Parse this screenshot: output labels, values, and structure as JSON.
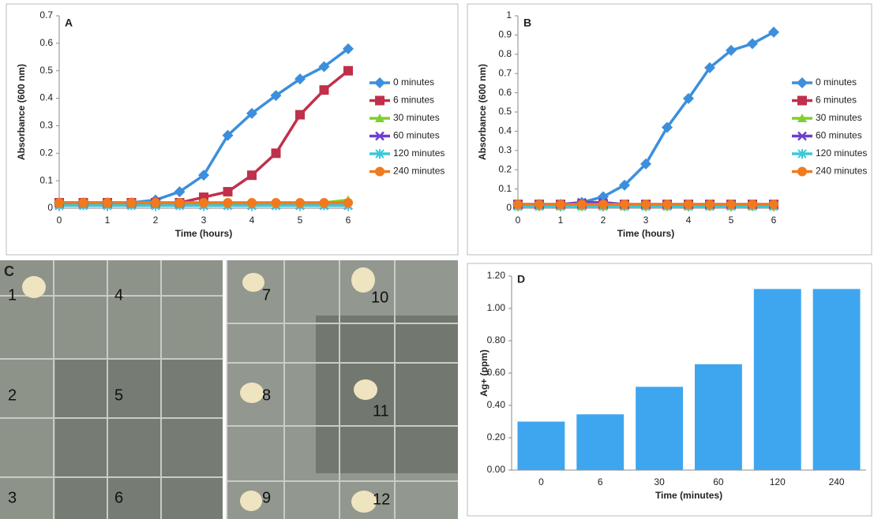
{
  "chart_data": [
    {
      "type": "line",
      "panel_label": "A",
      "y_label": "Absorbance (600 nm)",
      "x_label": "Time (hours)",
      "x": [
        0,
        0.5,
        1,
        1.5,
        2,
        2.5,
        3,
        3.5,
        4,
        4.5,
        5,
        5.5,
        6
      ],
      "xlim": [
        0,
        6
      ],
      "xticks": [
        0,
        1,
        2,
        3,
        4,
        5,
        6
      ],
      "ylim": [
        0,
        0.7
      ],
      "yticks": [
        0,
        0.1,
        0.2,
        0.3,
        0.4,
        0.5,
        0.6,
        0.7
      ],
      "series": [
        {
          "name": "0 minutes",
          "color": "#3c8fdc",
          "marker": "diamond",
          "values": [
            0.02,
            0.02,
            0.02,
            0.02,
            0.03,
            0.06,
            0.12,
            0.265,
            0.345,
            0.41,
            0.47,
            0.515,
            0.58
          ]
        },
        {
          "name": "6 minutes",
          "color": "#c0304a",
          "marker": "square",
          "values": [
            0.02,
            0.02,
            0.02,
            0.02,
            0.02,
            0.02,
            0.04,
            0.06,
            0.12,
            0.2,
            0.34,
            0.43,
            0.5
          ]
        },
        {
          "name": "30 minutes",
          "color": "#7fd02f",
          "marker": "triangle",
          "values": [
            0.02,
            0.02,
            0.02,
            0.02,
            0.02,
            0.02,
            0.02,
            0.02,
            0.02,
            0.02,
            0.02,
            0.02,
            0.03
          ]
        },
        {
          "name": "60 minutes",
          "color": "#6a3fcf",
          "marker": "cross",
          "values": [
            0.01,
            0.01,
            0.01,
            0.01,
            0.01,
            0.01,
            0.01,
            0.01,
            0.01,
            0.01,
            0.01,
            0.01,
            0.01
          ]
        },
        {
          "name": "120 minutes",
          "color": "#3cc8d8",
          "marker": "star",
          "values": [
            0.01,
            0.01,
            0.01,
            0.01,
            0.01,
            0.01,
            0.01,
            0.01,
            0.01,
            0.01,
            0.01,
            0.01,
            0.01
          ]
        },
        {
          "name": "240 minutes",
          "color": "#f07a1d",
          "marker": "circle",
          "values": [
            0.02,
            0.02,
            0.02,
            0.02,
            0.02,
            0.02,
            0.02,
            0.02,
            0.02,
            0.02,
            0.02,
            0.02,
            0.02
          ]
        }
      ]
    },
    {
      "type": "line",
      "panel_label": "B",
      "y_label": "Absorbance (600 nm)",
      "x_label": "Time (hours)",
      "x": [
        0,
        0.5,
        1,
        1.5,
        2,
        2.5,
        3,
        3.5,
        4,
        4.5,
        5,
        5.5,
        6
      ],
      "xlim": [
        0,
        6
      ],
      "xticks": [
        0,
        1,
        2,
        3,
        4,
        5,
        6
      ],
      "ylim": [
        0,
        1
      ],
      "yticks": [
        0,
        0.1,
        0.2,
        0.3,
        0.4,
        0.5,
        0.6,
        0.7,
        0.8,
        0.9,
        1
      ],
      "series": [
        {
          "name": "0 minutes",
          "color": "#3c8fdc",
          "marker": "diamond",
          "values": [
            0.02,
            0.02,
            0.02,
            0.03,
            0.06,
            0.12,
            0.23,
            0.42,
            0.57,
            0.73,
            0.82,
            0.855,
            0.915
          ]
        },
        {
          "name": "6 minutes",
          "color": "#c0304a",
          "marker": "square",
          "values": [
            0.02,
            0.02,
            0.02,
            0.02,
            0.02,
            0.02,
            0.02,
            0.02,
            0.02,
            0.02,
            0.02,
            0.02,
            0.02
          ]
        },
        {
          "name": "30 minutes",
          "color": "#7fd02f",
          "marker": "triangle",
          "values": [
            0.01,
            0.01,
            0.01,
            0.01,
            0.01,
            0.01,
            0.01,
            0.01,
            0.01,
            0.01,
            0.01,
            0.01,
            0.01
          ]
        },
        {
          "name": "60 minutes",
          "color": "#6a3fcf",
          "marker": "cross",
          "values": [
            0.02,
            0.02,
            0.02,
            0.03,
            0.03,
            0.02,
            0.02,
            0.02,
            0.02,
            0.02,
            0.02,
            0.02,
            0.02
          ]
        },
        {
          "name": "120 minutes",
          "color": "#3cc8d8",
          "marker": "star",
          "values": [
            0.01,
            0.01,
            0.01,
            0.01,
            0.01,
            0.01,
            0.01,
            0.01,
            0.01,
            0.01,
            0.01,
            0.01,
            0.01
          ]
        },
        {
          "name": "240 minutes",
          "color": "#f07a1d",
          "marker": "circle",
          "values": [
            0.02,
            0.02,
            0.02,
            0.02,
            0.02,
            0.02,
            0.02,
            0.02,
            0.02,
            0.02,
            0.02,
            0.02,
            0.02
          ]
        }
      ]
    },
    {
      "type": "bar",
      "panel_label": "D",
      "y_label": "Ag+ (ppm)",
      "x_label": "Time (minutes)",
      "color": "#3ea6ee",
      "categories": [
        "0",
        "6",
        "30",
        "60",
        "120",
        "240"
      ],
      "values": [
        0.3,
        0.345,
        0.515,
        0.655,
        1.12,
        1.12
      ],
      "ylim": [
        0,
        1.2
      ],
      "yticks": [
        {
          "value": 0,
          "label": "0.00"
        },
        {
          "value": 0.2,
          "label": "0.20"
        },
        {
          "value": 0.4,
          "label": "0.40"
        },
        {
          "value": 0.6,
          "label": "0.60"
        },
        {
          "value": 0.8,
          "label": "0.80"
        },
        {
          "value": 1,
          "label": "1.00"
        },
        {
          "value": 1.2,
          "label": "1.20"
        }
      ]
    }
  ],
  "photo": {
    "panel_label": "C",
    "labels": [
      "1",
      "2",
      "3",
      "4",
      "5",
      "6",
      "7",
      "8",
      "9",
      "10",
      "11",
      "12"
    ]
  }
}
